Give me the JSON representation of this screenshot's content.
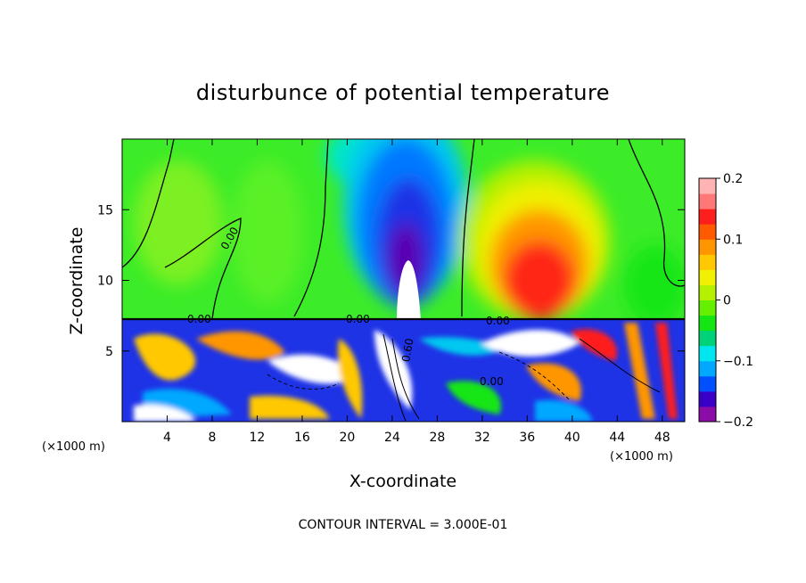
{
  "chart_data": {
    "type": "heatmap",
    "title": "disturbunce of potential temperature",
    "xlabel": "X-coordinate",
    "ylabel": "Z-coordinate",
    "x_unit": "(×1000 m)",
    "z_unit": "(×1000 m)",
    "xlim": [
      0,
      50
    ],
    "ylim": [
      0,
      20
    ],
    "x_ticks": [
      4,
      8,
      12,
      16,
      20,
      24,
      28,
      32,
      36,
      40,
      44,
      48
    ],
    "y_ticks": [
      5,
      10,
      15
    ],
    "colorbar": {
      "range": [
        -0.2,
        0.2
      ],
      "tick_values": [
        0.2,
        0.1,
        0,
        -0.1,
        -0.2
      ],
      "tick_labels": [
        "0.2",
        "0.1",
        "0",
        "−0.1",
        "−0.2"
      ],
      "colors": [
        "#8c0ca8",
        "#3a00c8",
        "#0050ff",
        "#00a8ff",
        "#00e6f0",
        "#00d27a",
        "#14e614",
        "#64f000",
        "#b4f000",
        "#f0f000",
        "#ffc800",
        "#ff9600",
        "#ff5a00",
        "#ff1e1e",
        "#ff7878",
        "#ffb4b4"
      ]
    },
    "contour_labels": [
      "0.00",
      "0.00",
      "0.00",
      "0.00",
      "0.60",
      "0.00"
    ],
    "contour_interval_text": "CONTOUR INTERVAL = 3.000E-01",
    "features": [
      {
        "x": 25,
        "z": 15,
        "value": -0.16
      },
      {
        "x": 38,
        "z": 11,
        "value": 0.16
      },
      {
        "x": 25,
        "z": 9.5,
        "value": 0.3
      },
      {
        "x": 13,
        "z": 13,
        "value": 0.02
      }
    ]
  }
}
